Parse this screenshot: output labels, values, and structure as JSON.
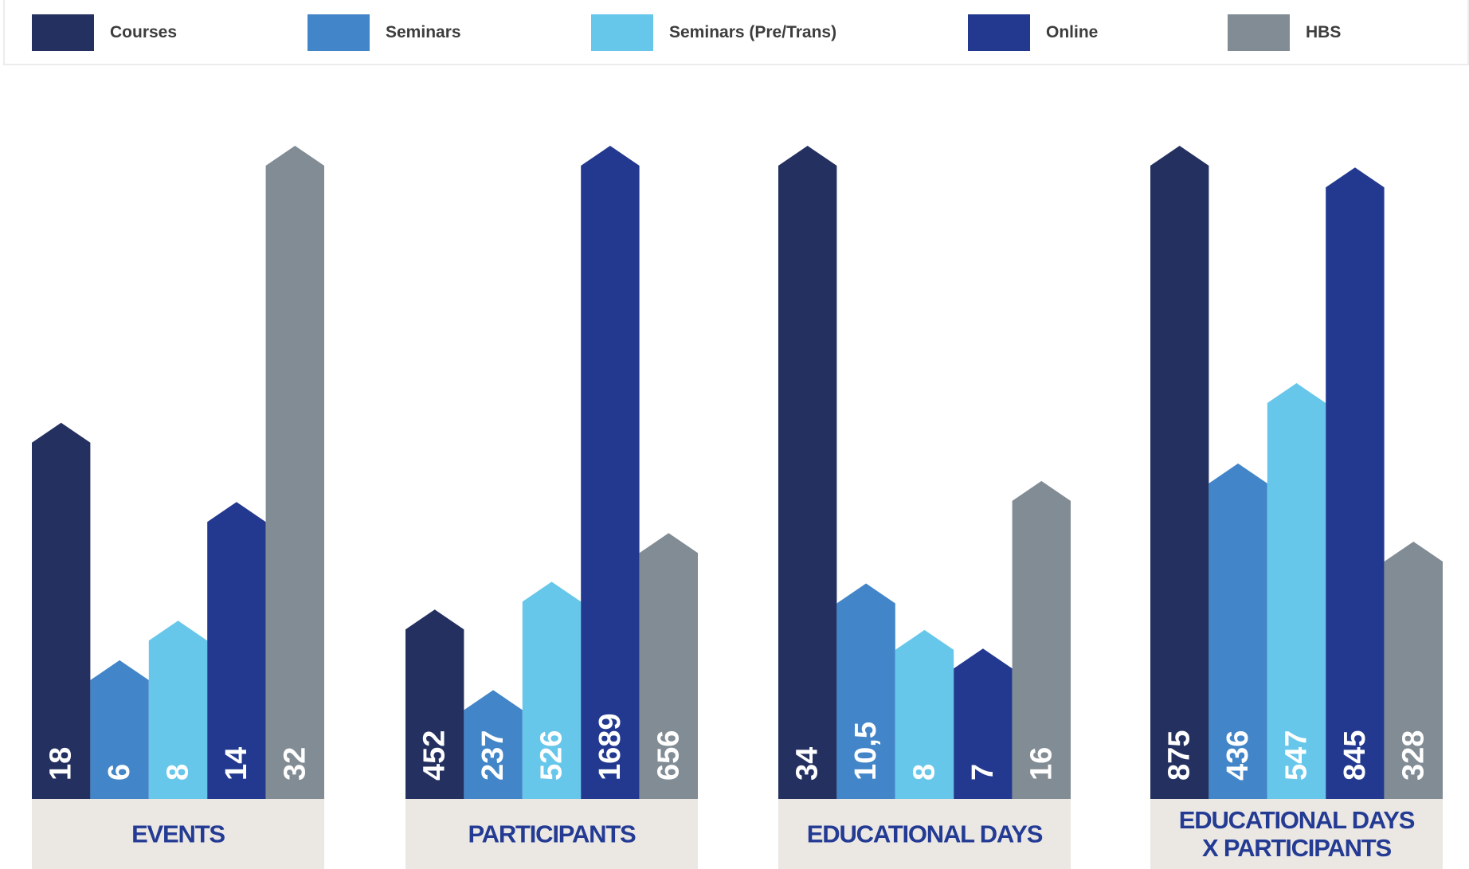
{
  "legend": [
    {
      "label": "Courses",
      "color": "#243160"
    },
    {
      "label": "Seminars",
      "color": "#4285c8"
    },
    {
      "label": "Seminars (Pre/Trans)",
      "color": "#66c7ea"
    },
    {
      "label": "Online",
      "color": "#22398f"
    },
    {
      "label": "HBS",
      "color": "#828c94"
    }
  ],
  "chart_data": {
    "type": "bar",
    "series_colors": [
      "#243160",
      "#4285c8",
      "#66c7ea",
      "#22398f",
      "#828c94"
    ],
    "category_label_color": "#243b94",
    "category_band_color": "#ebe8e4",
    "groups": [
      {
        "label_lines": [
          "EVENTS"
        ],
        "values": [
          18,
          6,
          8,
          14,
          32
        ],
        "labels": [
          "18",
          "6",
          "8",
          "14",
          "32"
        ]
      },
      {
        "label_lines": [
          "PARTICIPANTS"
        ],
        "values": [
          452,
          237,
          526,
          1689,
          656
        ],
        "labels": [
          "452",
          "237",
          "526",
          "1689",
          "656"
        ]
      },
      {
        "label_lines": [
          "EDUCATIONAL DAYS"
        ],
        "values": [
          34,
          10.5,
          8,
          7,
          16
        ],
        "labels": [
          "34",
          "10,5",
          "8",
          "7",
          "16"
        ]
      },
      {
        "label_lines": [
          "EDUCATIONAL DAYS",
          "X PARTICIPANTS"
        ],
        "values": [
          875,
          436,
          547,
          845,
          328
        ],
        "labels": [
          "875",
          "436",
          "547",
          "845",
          "328"
        ]
      }
    ]
  }
}
